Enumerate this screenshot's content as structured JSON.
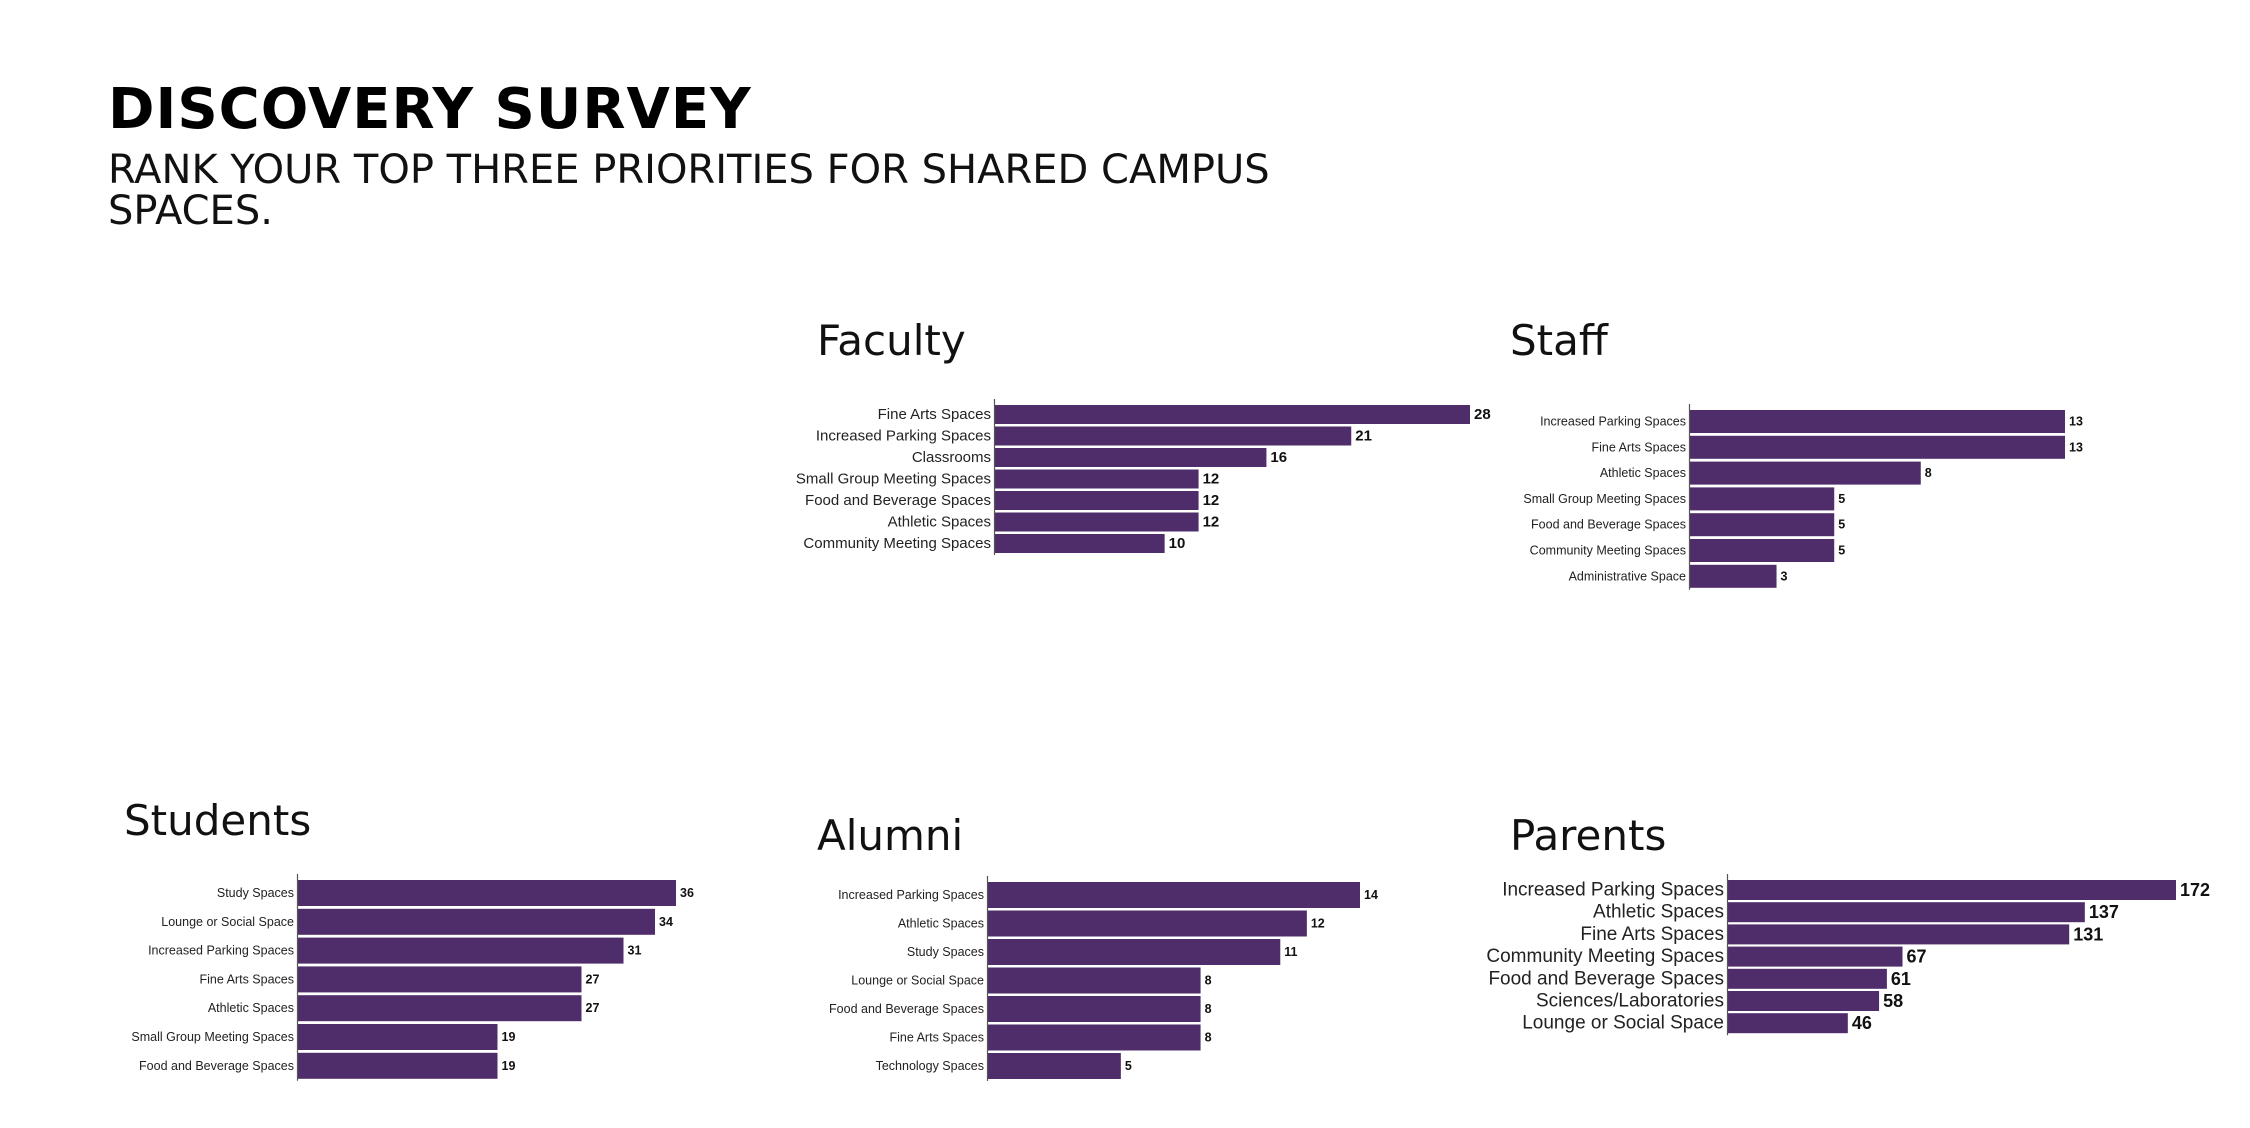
{
  "page": {
    "title": "DISCOVERY SURVEY",
    "subtitle": "RANK YOUR TOP THREE PRIORITIES FOR SHARED CAMPUS SPACES."
  },
  "colors": {
    "bar": "#4f2d6a",
    "axis": "#555555",
    "text": "#222222"
  },
  "chart_data": [
    {
      "type": "bar",
      "orientation": "horizontal",
      "title": "Faculty",
      "categories": [
        "Fine Arts Spaces",
        "Increased Parking Spaces",
        "Classrooms",
        "Small Group Meeting Spaces",
        "Food and Beverage Spaces",
        "Athletic Spaces",
        "Community Meeting Spaces"
      ],
      "values": [
        28,
        21,
        16,
        12,
        12,
        12,
        10
      ]
    },
    {
      "type": "bar",
      "orientation": "horizontal",
      "title": "Staff",
      "categories": [
        "Increased Parking Spaces",
        "Fine Arts Spaces",
        "Athletic Spaces",
        "Small Group Meeting Spaces",
        "Food and Beverage Spaces",
        "Community Meeting Spaces",
        "Administrative Space"
      ],
      "values": [
        13,
        13,
        8,
        5,
        5,
        5,
        3
      ]
    },
    {
      "type": "bar",
      "orientation": "horizontal",
      "title": "Students",
      "categories": [
        "Study Spaces",
        "Lounge or Social Space",
        "Increased Parking Spaces",
        "Fine Arts Spaces",
        "Athletic Spaces",
        "Small Group Meeting Spaces",
        "Food and Beverage Spaces"
      ],
      "values": [
        36,
        34,
        31,
        27,
        27,
        19,
        19
      ]
    },
    {
      "type": "bar",
      "orientation": "horizontal",
      "title": "Alumni",
      "categories": [
        "Increased Parking Spaces",
        "Athletic Spaces",
        "Study Spaces",
        "Lounge or Social Space",
        "Food and Beverage Spaces",
        "Fine Arts Spaces",
        "Technology Spaces"
      ],
      "values": [
        14,
        12,
        11,
        8,
        8,
        8,
        5
      ]
    },
    {
      "type": "bar",
      "orientation": "horizontal",
      "title": "Parents",
      "categories": [
        "Increased Parking Spaces",
        "Athletic Spaces",
        "Fine Arts Spaces",
        "Community Meeting Spaces",
        "Food and Beverage Spaces",
        "Sciences/Laboratories",
        "Lounge or Social Space"
      ],
      "values": [
        172,
        137,
        131,
        67,
        61,
        58,
        46
      ]
    }
  ]
}
